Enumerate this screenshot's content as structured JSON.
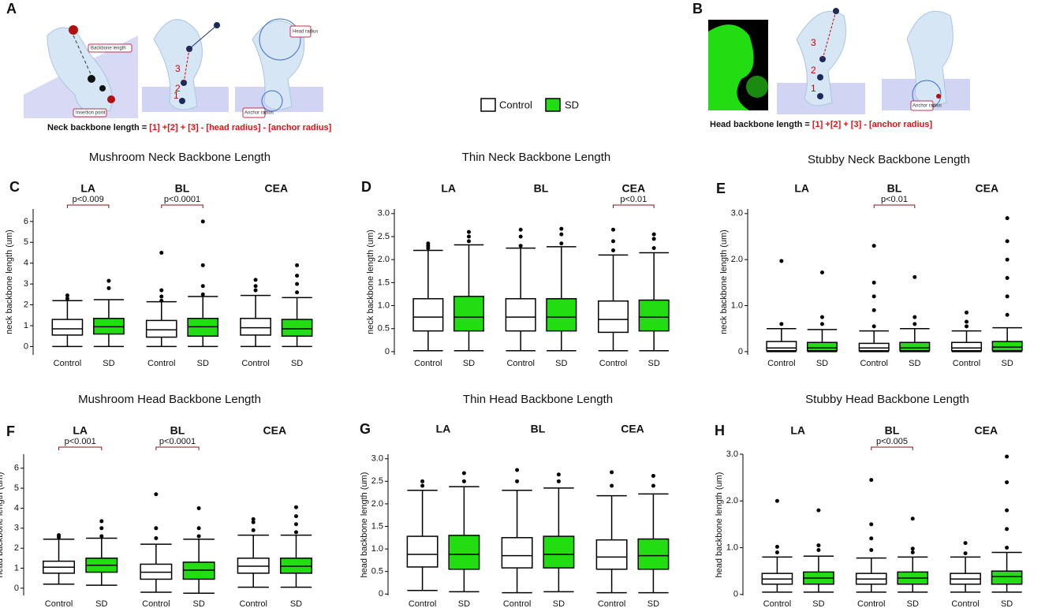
{
  "schematic_a": {
    "letter": "A",
    "labels": [
      "Backbone length",
      "Insertion point",
      "Head radius",
      "Anchor radius"
    ],
    "steps": [
      "1",
      "2",
      "3"
    ],
    "formula_lead": "Neck backbone length = ",
    "formula_terms": "[1] +[2] + [3] - [head radius] - [anchor radius]"
  },
  "schematic_b": {
    "letter": "B",
    "labels": [
      "Anchor radius"
    ],
    "steps": [
      "1",
      "2",
      "3"
    ],
    "formula_lead": "Head backbone length = ",
    "formula_terms": "[1] +[2] + [3] - [anchor radius]"
  },
  "legend": [
    {
      "name": "Control",
      "color": "#ffffff"
    },
    {
      "name": "SD",
      "color": "#22dd11"
    }
  ],
  "chart_data": [
    {
      "type": "box",
      "panel": "C",
      "title": "Mushroom Neck Backbone Length",
      "y_label": "neck backbone length (um)",
      "ylim": [
        -0.4,
        6.6
      ],
      "yticks": [
        0,
        1,
        2,
        3,
        4,
        5,
        6
      ],
      "series": [
        {
          "name": "Control",
          "color": "#ffffff"
        },
        {
          "name": "SD",
          "color": "#22dd11"
        }
      ],
      "groups": [
        {
          "name": "LA",
          "p_label": "p<0.009",
          "boxes": [
            {
              "whisker_low": 0,
              "q1": 0.55,
              "median": 0.85,
              "q3": 1.3,
              "whisker_high": 2.2,
              "outliers": [
                2.3,
                2.45
              ]
            },
            {
              "whisker_low": 0,
              "q1": 0.6,
              "median": 0.95,
              "q3": 1.35,
              "whisker_high": 2.25,
              "outliers": [
                2.8,
                3.15
              ]
            }
          ]
        },
        {
          "name": "BL",
          "p_label": "p<0.0001",
          "boxes": [
            {
              "whisker_low": 0,
              "q1": 0.45,
              "median": 0.8,
              "q3": 1.25,
              "whisker_high": 2.15,
              "outliers": [
                2.2,
                2.4,
                2.7,
                4.5
              ]
            },
            {
              "whisker_low": 0,
              "q1": 0.5,
              "median": 0.95,
              "q3": 1.35,
              "whisker_high": 2.4,
              "outliers": [
                2.5,
                2.9,
                3.9,
                6.0
              ]
            }
          ]
        },
        {
          "name": "CEA",
          "boxes": [
            {
              "whisker_low": 0,
              "q1": 0.55,
              "median": 0.9,
              "q3": 1.35,
              "whisker_high": 2.45,
              "outliers": [
                2.7,
                2.9,
                3.2
              ]
            },
            {
              "whisker_low": 0,
              "q1": 0.5,
              "median": 0.85,
              "q3": 1.3,
              "whisker_high": 2.35,
              "outliers": [
                2.6,
                3.0,
                3.4,
                3.9
              ]
            }
          ]
        }
      ]
    },
    {
      "type": "box",
      "panel": "D",
      "title": "Thin Neck Backbone Length",
      "y_label": "neck backbone length (um)",
      "ylim": [
        -0.07,
        3.1
      ],
      "yticks": [
        0,
        0.5,
        {
          "value": 1,
          "label": "1.0"
        },
        1.5,
        {
          "value": 2,
          "label": "2.0"
        },
        2.5,
        {
          "value": 3,
          "label": "3.0"
        }
      ],
      "series": [
        {
          "name": "Control",
          "color": "#ffffff"
        },
        {
          "name": "SD",
          "color": "#22dd11"
        }
      ],
      "groups": [
        {
          "name": "LA",
          "boxes": [
            {
              "whisker_low": 0.02,
              "q1": 0.45,
              "median": 0.75,
              "q3": 1.15,
              "whisker_high": 2.2,
              "outliers": [
                2.25,
                2.3,
                2.35
              ]
            },
            {
              "whisker_low": 0.02,
              "q1": 0.45,
              "median": 0.75,
              "q3": 1.2,
              "whisker_high": 2.32,
              "outliers": [
                2.4,
                2.5,
                2.6
              ]
            }
          ]
        },
        {
          "name": "BL",
          "boxes": [
            {
              "whisker_low": 0.02,
              "q1": 0.45,
              "median": 0.75,
              "q3": 1.15,
              "whisker_high": 2.25,
              "outliers": [
                2.3,
                2.5,
                2.65
              ]
            },
            {
              "whisker_low": 0.02,
              "q1": 0.45,
              "median": 0.75,
              "q3": 1.15,
              "whisker_high": 2.28,
              "outliers": [
                2.35,
                2.55,
                2.67
              ]
            }
          ]
        },
        {
          "name": "CEA",
          "p_label": "p<0.01",
          "boxes": [
            {
              "whisker_low": 0.02,
              "q1": 0.42,
              "median": 0.7,
              "q3": 1.1,
              "whisker_high": 2.1,
              "outliers": [
                2.2,
                2.4,
                2.65
              ]
            },
            {
              "whisker_low": 0.02,
              "q1": 0.45,
              "median": 0.75,
              "q3": 1.12,
              "whisker_high": 2.15,
              "outliers": [
                2.25,
                2.45,
                2.55
              ]
            }
          ]
        }
      ]
    },
    {
      "type": "box",
      "panel": "E",
      "title": "Stubby Neck Backbone Length",
      "y_label": "neck backbone length (um)",
      "ylim": [
        -0.07,
        3.1
      ],
      "yticks": [
        0,
        {
          "value": 1,
          "label": "1.0"
        },
        {
          "value": 2,
          "label": "2.0"
        },
        {
          "value": 3,
          "label": "3.0"
        }
      ],
      "series": [
        {
          "name": "Control",
          "color": "#ffffff"
        },
        {
          "name": "SD",
          "color": "#22dd11"
        }
      ],
      "groups": [
        {
          "name": "LA",
          "boxes": [
            {
              "whisker_low": 0,
              "q1": 0.02,
              "median": 0.08,
              "q3": 0.22,
              "whisker_high": 0.5,
              "outliers": [
                0.6,
                1.97
              ]
            },
            {
              "whisker_low": 0,
              "q1": 0.02,
              "median": 0.08,
              "q3": 0.2,
              "whisker_high": 0.48,
              "outliers": [
                0.6,
                0.75,
                1.72
              ]
            }
          ]
        },
        {
          "name": "BL",
          "p_label": "p<0.01",
          "boxes": [
            {
              "whisker_low": 0,
              "q1": 0.02,
              "median": 0.08,
              "q3": 0.18,
              "whisker_high": 0.45,
              "outliers": [
                0.55,
                0.9,
                1.2,
                1.5,
                2.3
              ]
            },
            {
              "whisker_low": 0,
              "q1": 0.02,
              "median": 0.08,
              "q3": 0.2,
              "whisker_high": 0.5,
              "outliers": [
                0.6,
                0.75,
                1.62
              ]
            }
          ]
        },
        {
          "name": "CEA",
          "boxes": [
            {
              "whisker_low": 0,
              "q1": 0.02,
              "median": 0.08,
              "q3": 0.2,
              "whisker_high": 0.45,
              "outliers": [
                0.55,
                0.65,
                0.85
              ]
            },
            {
              "whisker_low": 0,
              "q1": 0.02,
              "median": 0.1,
              "q3": 0.22,
              "whisker_high": 0.52,
              "outliers": [
                0.8,
                1.2,
                1.6,
                2.0,
                2.4,
                2.9
              ]
            }
          ]
        }
      ]
    },
    {
      "type": "box",
      "panel": "F",
      "title": "Mushroom Head Backbone Length",
      "y_label": "head backbone length (um)",
      "ylim": [
        -0.36,
        6.7
      ],
      "yticks": [
        0,
        1,
        2,
        3,
        4,
        5,
        6
      ],
      "series": [
        {
          "name": "Control",
          "color": "#ffffff"
        },
        {
          "name": "SD",
          "color": "#22dd11"
        }
      ],
      "groups": [
        {
          "name": "LA",
          "p_label": "p<0.001",
          "boxes": [
            {
              "whisker_low": 0.2,
              "q1": 0.75,
              "median": 1.05,
              "q3": 1.35,
              "whisker_high": 2.45,
              "outliers": [
                2.55,
                2.65
              ]
            },
            {
              "whisker_low": 0.15,
              "q1": 0.8,
              "median": 1.15,
              "q3": 1.5,
              "whisker_high": 2.5,
              "outliers": [
                2.6,
                3.0,
                3.35
              ]
            }
          ]
        },
        {
          "name": "BL",
          "p_label": "p<0.0001",
          "boxes": [
            {
              "whisker_low": -0.2,
              "q1": 0.45,
              "median": 0.8,
              "q3": 1.2,
              "whisker_high": 2.2,
              "outliers": [
                2.5,
                3.0,
                4.7
              ]
            },
            {
              "whisker_low": -0.25,
              "q1": 0.45,
              "median": 0.9,
              "q3": 1.3,
              "whisker_high": 2.45,
              "outliers": [
                2.6,
                3.0,
                4.0
              ]
            }
          ]
        },
        {
          "name": "CEA",
          "boxes": [
            {
              "whisker_low": 0.05,
              "q1": 0.75,
              "median": 1.1,
              "q3": 1.5,
              "whisker_high": 2.65,
              "outliers": [
                2.9,
                3.3,
                3.45
              ]
            },
            {
              "whisker_low": 0.05,
              "q1": 0.75,
              "median": 1.1,
              "q3": 1.5,
              "whisker_high": 2.65,
              "outliers": [
                2.8,
                3.2,
                3.6,
                4.05
              ]
            }
          ]
        }
      ]
    },
    {
      "type": "box",
      "panel": "G",
      "title": "Thin Head Backbone Length",
      "y_label": "head backbone length (um)",
      "ylim": [
        -0.03,
        3.1
      ],
      "yticks": [
        0,
        0.5,
        {
          "value": 1,
          "label": "1.0"
        },
        1.5,
        {
          "value": 2,
          "label": "2.0"
        },
        2.5,
        {
          "value": 3,
          "label": "3.0"
        }
      ],
      "series": [
        {
          "name": "Control",
          "color": "#ffffff"
        },
        {
          "name": "SD",
          "color": "#22dd11"
        }
      ],
      "groups": [
        {
          "name": "LA",
          "boxes": [
            {
              "whisker_low": 0.08,
              "q1": 0.6,
              "median": 0.88,
              "q3": 1.28,
              "whisker_high": 2.3,
              "outliers": [
                2.4,
                2.5
              ]
            },
            {
              "whisker_low": 0.05,
              "q1": 0.55,
              "median": 0.88,
              "q3": 1.3,
              "whisker_high": 2.38,
              "outliers": [
                2.5,
                2.68
              ]
            }
          ]
        },
        {
          "name": "BL",
          "boxes": [
            {
              "whisker_low": 0.03,
              "q1": 0.58,
              "median": 0.85,
              "q3": 1.25,
              "whisker_high": 2.3,
              "outliers": [
                2.5,
                2.75
              ]
            },
            {
              "whisker_low": 0.05,
              "q1": 0.58,
              "median": 0.88,
              "q3": 1.28,
              "whisker_high": 2.35,
              "outliers": [
                2.5,
                2.65
              ]
            }
          ]
        },
        {
          "name": "CEA",
          "boxes": [
            {
              "whisker_low": 0.03,
              "q1": 0.55,
              "median": 0.82,
              "q3": 1.2,
              "whisker_high": 2.18,
              "outliers": [
                2.4,
                2.7
              ]
            },
            {
              "whisker_low": 0.03,
              "q1": 0.55,
              "median": 0.85,
              "q3": 1.22,
              "whisker_high": 2.22,
              "outliers": [
                2.4,
                2.62
              ]
            }
          ]
        }
      ]
    },
    {
      "type": "box",
      "panel": "H",
      "title": "Stubby Head Backbone Length",
      "y_label": "head backbone length (um)",
      "ylim": [
        -0.02,
        3.0
      ],
      "yticks": [
        0,
        {
          "value": 1,
          "label": "1.0"
        },
        {
          "value": 2,
          "label": "2.0"
        },
        {
          "value": 3,
          "label": "3.0"
        }
      ],
      "series": [
        {
          "name": "Control",
          "color": "#ffffff"
        },
        {
          "name": "SD",
          "color": "#22dd11"
        }
      ],
      "groups": [
        {
          "name": "LA",
          "boxes": [
            {
              "whisker_low": 0.05,
              "q1": 0.22,
              "median": 0.33,
              "q3": 0.45,
              "whisker_high": 0.8,
              "outliers": [
                0.9,
                1.02,
                2.0
              ]
            },
            {
              "whisker_low": 0.05,
              "q1": 0.22,
              "median": 0.35,
              "q3": 0.48,
              "whisker_high": 0.82,
              "outliers": [
                0.95,
                1.05,
                1.8
              ]
            }
          ]
        },
        {
          "name": "BL",
          "p_label": "p<0.005",
          "boxes": [
            {
              "whisker_low": 0.05,
              "q1": 0.22,
              "median": 0.33,
              "q3": 0.45,
              "whisker_high": 0.78,
              "outliers": [
                0.95,
                1.2,
                1.5,
                2.45
              ]
            },
            {
              "whisker_low": 0.05,
              "q1": 0.22,
              "median": 0.35,
              "q3": 0.48,
              "whisker_high": 0.8,
              "outliers": [
                0.9,
                0.98,
                1.62
              ]
            }
          ]
        },
        {
          "name": "CEA",
          "boxes": [
            {
              "whisker_low": 0.05,
              "q1": 0.22,
              "median": 0.33,
              "q3": 0.45,
              "whisker_high": 0.8,
              "outliers": [
                0.88,
                1.1
              ]
            },
            {
              "whisker_low": 0.05,
              "q1": 0.22,
              "median": 0.38,
              "q3": 0.5,
              "whisker_high": 0.9,
              "outliers": [
                1.0,
                1.4,
                1.8,
                2.4,
                2.95
              ]
            }
          ]
        }
      ]
    }
  ]
}
